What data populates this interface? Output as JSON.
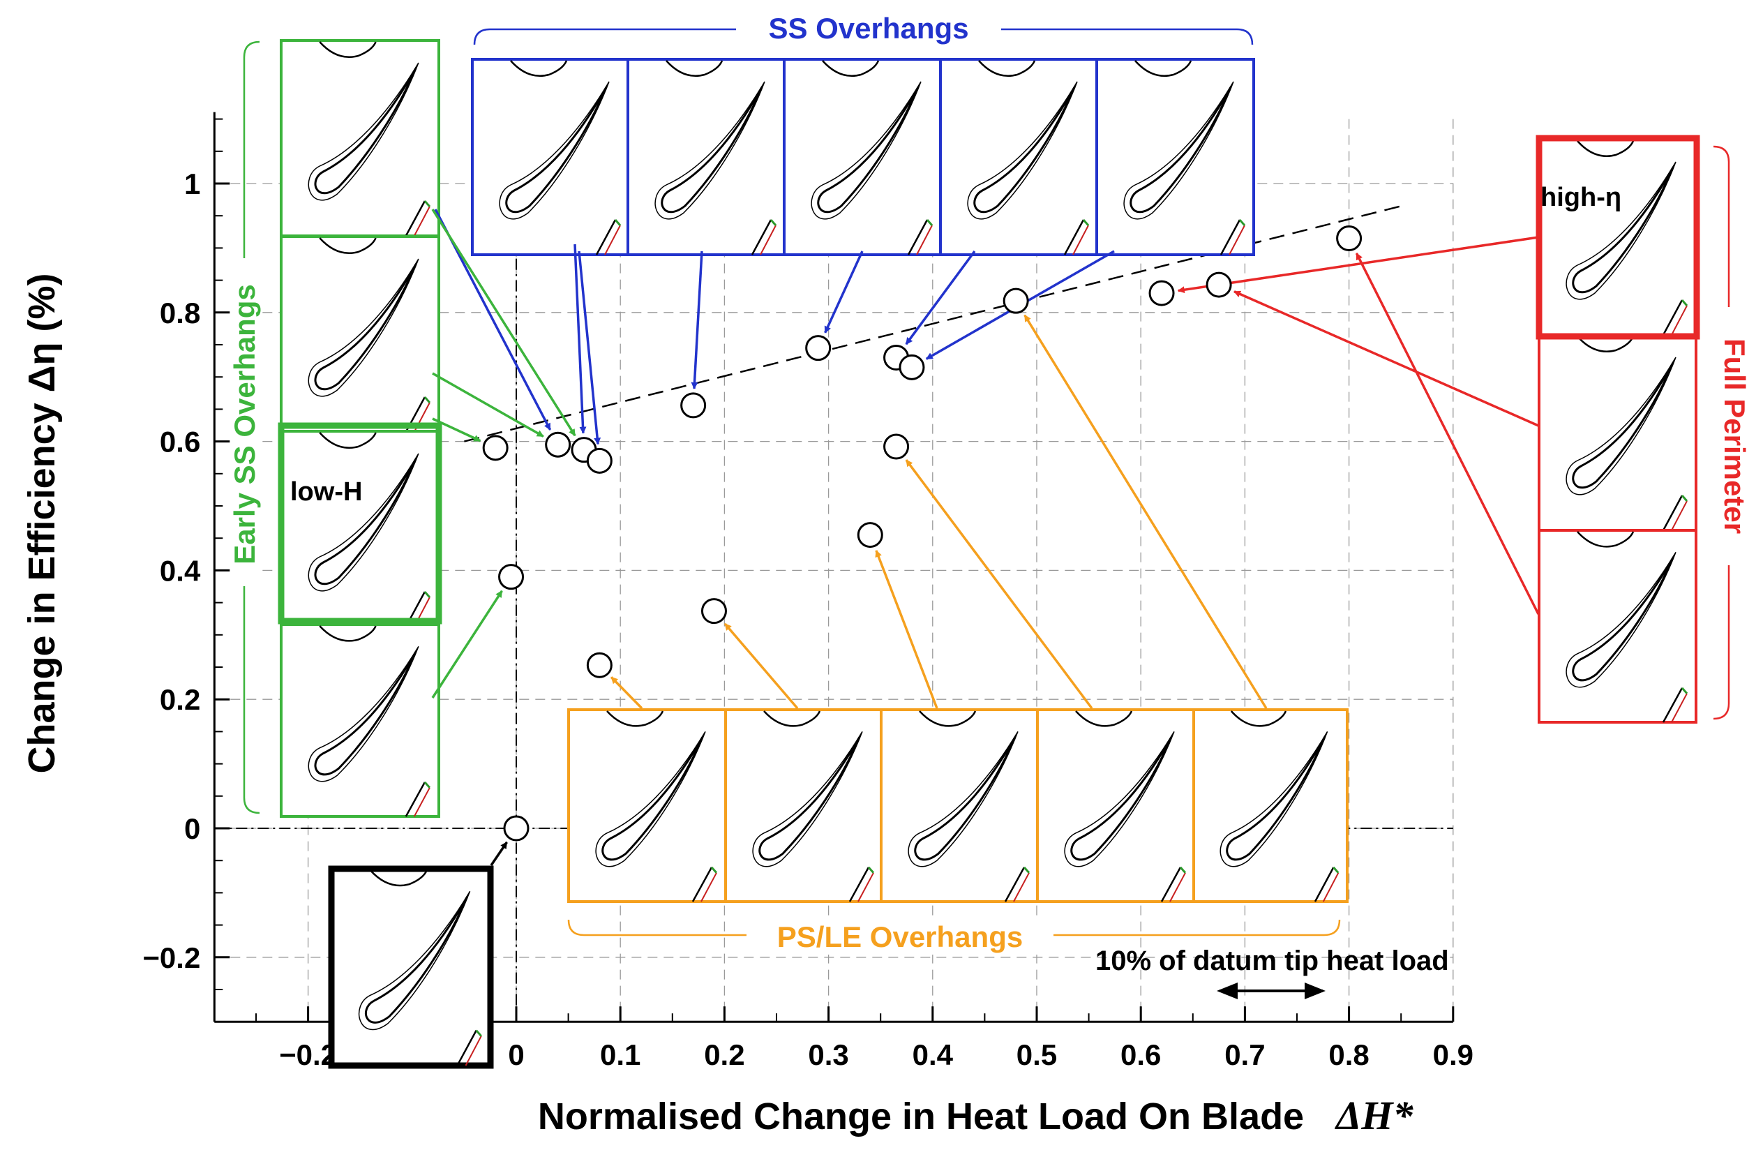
{
  "chart_data": {
    "type": "scatter",
    "xlabel": "Normalised Change in Heat Load On Blade",
    "xlabel_symbol": "ΔH*",
    "ylabel": "Change in Efficiency Δη (%)",
    "xlim": [
      -0.29,
      0.9
    ],
    "ylim": [
      -0.3,
      1.1
    ],
    "xticks": [
      -0.2,
      0,
      0.1,
      0.2,
      0.3,
      0.4,
      0.5,
      0.6,
      0.7,
      0.8,
      0.9
    ],
    "xtick_labels": [
      "−0.2",
      "0",
      "0.1",
      "0.2",
      "0.3",
      "0.4",
      "0.5",
      "0.6",
      "0.7",
      "0.8",
      "0.9"
    ],
    "yticks": [
      -0.2,
      0,
      0.2,
      0.4,
      0.6,
      0.8,
      1
    ],
    "ytick_labels": [
      "−0.2",
      "0",
      "0.2",
      "0.4",
      "0.6",
      "0.8",
      "1"
    ],
    "grid": true,
    "trend_line": {
      "x": [
        -0.05,
        0.85
      ],
      "y": [
        0.6,
        0.965
      ]
    },
    "reference_lines": {
      "x0": 0,
      "y0": 0
    },
    "groups": [
      {
        "name": "Early SS Overhangs",
        "color": "#3cb43c",
        "points": [
          [
            -0.02,
            0.59
          ],
          [
            -0.005,
            0.39
          ]
        ]
      },
      {
        "name": "SS Overhangs",
        "color": "#2233cc",
        "points": [
          [
            0.04,
            0.595
          ],
          [
            0.065,
            0.587
          ],
          [
            0.08,
            0.57
          ],
          [
            0.17,
            0.656
          ],
          [
            0.29,
            0.745
          ],
          [
            0.365,
            0.73
          ],
          [
            0.38,
            0.715
          ]
        ]
      },
      {
        "name": "PS/LE Overhangs",
        "color": "#f5a01e",
        "points": [
          [
            0.08,
            0.253
          ],
          [
            0.19,
            0.337
          ],
          [
            0.34,
            0.455
          ],
          [
            0.365,
            0.592
          ],
          [
            0.48,
            0.818
          ]
        ]
      },
      {
        "name": "Full Perimeter",
        "color": "#e82828",
        "points": [
          [
            0.62,
            0.83
          ],
          [
            0.675,
            0.843
          ],
          [
            0.8,
            0.915
          ]
        ]
      },
      {
        "name": "Datum",
        "color": "#000000",
        "points": [
          [
            0,
            0
          ]
        ]
      }
    ],
    "annotations": [
      {
        "text": "SS Overhangs",
        "color": "#2233cc"
      },
      {
        "text": "Early SS Overhangs",
        "color": "#3cb43c"
      },
      {
        "text": "PS/LE Overhangs",
        "color": "#f5a01e"
      },
      {
        "text": "Full Perimeter",
        "color": "#e82828"
      },
      {
        "text": "low-H",
        "color": "#000000"
      },
      {
        "text": "high-η",
        "color": "#000000"
      },
      {
        "text": "10% of datum tip heat load",
        "color": "#000000"
      }
    ]
  }
}
